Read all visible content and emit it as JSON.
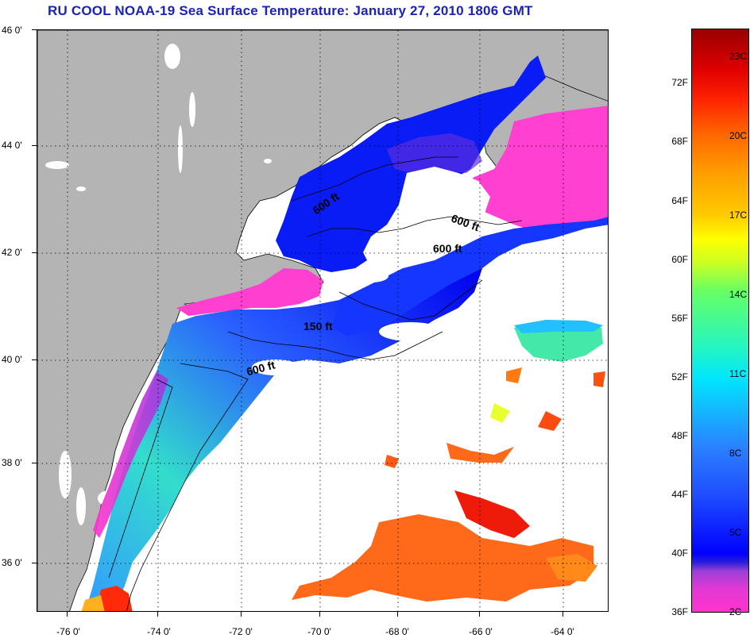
{
  "title": "RU COOL  NOAA-19  Sea Surface Temperature:  January 27, 2010 1806 GMT",
  "lat_labels": [
    "46 0'",
    "44 0'",
    "42 0'",
    "40 0'",
    "38 0'",
    "36 0'"
  ],
  "lon_labels": [
    "-76 0'",
    "-74 0'",
    "-72 0'",
    "-70 0'",
    "-68 0'",
    "-66 0'",
    "-64 0'"
  ],
  "contour_labels": {
    "a": "600 ft",
    "b": "600 ft",
    "c": "600 ft",
    "d": "150 ft",
    "e": "600 ft"
  },
  "colorbar": {
    "fahrenheit": [
      "72F",
      "68F",
      "64F",
      "60F",
      "56F",
      "52F",
      "48F",
      "44F",
      "40F",
      "36F"
    ],
    "celsius": [
      "23C",
      "20C",
      "17C",
      "14C",
      "11C",
      "8C",
      "5C",
      "2C"
    ]
  },
  "colors": {
    "land": "#b4b4b4",
    "cloud": "#ffffff",
    "title": "#1b22b8",
    "cold": "#ff33cc",
    "blue": "#0000ff",
    "warm": "#ff7a1a"
  }
}
